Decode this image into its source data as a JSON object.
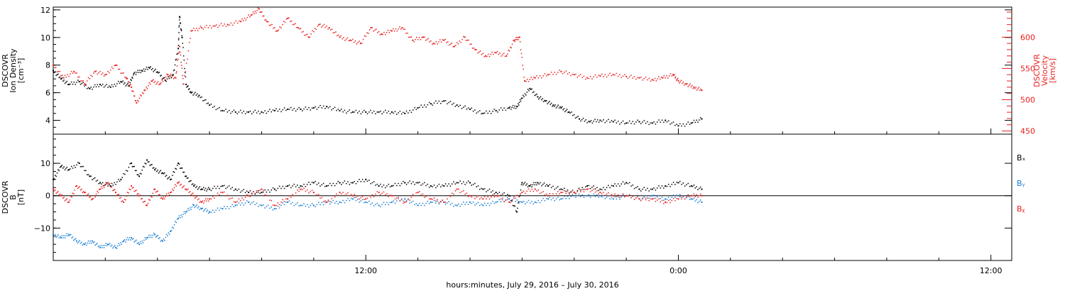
{
  "xaxis": {
    "label": "hours:minutes, July 29, 2016 – July 30, 2016",
    "tick_labels": [
      {
        "hours": 12,
        "label": "12:00"
      },
      {
        "hours": 24,
        "label": "0:00"
      },
      {
        "hours": 36,
        "label": "12:00"
      }
    ]
  },
  "colors": {
    "black": "#000000",
    "red": "#e8201f",
    "blue": "#1a7fd4"
  },
  "chart_data": [
    {
      "type": "scatter",
      "panel": "density-velocity",
      "xlim": [
        0,
        36.8
      ],
      "x_units": "hours since 2016-07-29 00:00",
      "left_axis": {
        "title_lines": [
          "DSCOVR",
          "Ion Density",
          "[cm⁻³]"
        ],
        "ylim": [
          3.0,
          12.2
        ],
        "ticks": [
          4,
          6,
          8,
          10,
          12
        ]
      },
      "right_axis": {
        "title_lines": [
          "DSCOVR",
          "Velocity",
          "[km/s]"
        ],
        "ylim": [
          445,
          648
        ],
        "ticks": [
          450,
          500,
          550,
          600
        ],
        "minor_step": 10
      },
      "series": [
        {
          "color": "black",
          "axis": "left",
          "x": [
            0,
            0.3,
            0.6,
            1.0,
            1.4,
            1.8,
            2.2,
            2.6,
            2.9,
            3.1,
            3.4,
            3.7,
            4.0,
            4.3,
            4.6,
            4.8,
            4.85,
            4.95,
            5.1,
            5.3,
            5.6,
            6.0,
            6.5,
            7.0,
            7.5,
            8.0,
            8.5,
            9.0,
            9.5,
            10.0,
            10.5,
            11.0,
            11.5,
            12.0,
            12.5,
            13.0,
            13.5,
            14.0,
            14.5,
            15.0,
            15.5,
            16.0,
            16.5,
            17.0,
            17.5,
            17.8,
            18.0,
            18.3,
            18.6,
            18.9,
            19.2,
            19.5,
            19.8,
            20.2,
            20.6,
            21.0,
            21.5,
            22.0,
            22.5,
            23.0,
            23.5,
            24.0,
            24.5,
            24.9
          ],
          "y": [
            7.6,
            7.0,
            6.6,
            6.8,
            6.3,
            6.6,
            6.4,
            6.8,
            6.5,
            7.4,
            7.6,
            7.8,
            7.5,
            6.9,
            7.3,
            9.2,
            11.5,
            10.0,
            6.6,
            6.0,
            5.8,
            5.1,
            4.7,
            4.6,
            4.6,
            4.6,
            4.7,
            4.8,
            4.8,
            4.9,
            5.0,
            4.7,
            4.6,
            4.6,
            4.6,
            4.6,
            4.5,
            4.9,
            5.2,
            5.4,
            5.1,
            4.8,
            4.5,
            4.7,
            4.9,
            5.0,
            5.6,
            6.3,
            5.7,
            5.4,
            5.1,
            4.9,
            4.6,
            4.1,
            3.9,
            4.0,
            3.9,
            3.8,
            3.9,
            3.8,
            4.0,
            3.6,
            3.8,
            4.1
          ]
        },
        {
          "color": "red",
          "axis": "right",
          "x": [
            0,
            0.4,
            0.8,
            1.2,
            1.6,
            2.0,
            2.4,
            2.8,
            3.0,
            3.2,
            3.5,
            3.8,
            4.1,
            4.4,
            4.7,
            4.85,
            5.0,
            5.3,
            5.7,
            6.2,
            6.7,
            7.2,
            7.6,
            7.9,
            8.2,
            8.6,
            9.0,
            9.4,
            9.8,
            10.2,
            10.6,
            11.0,
            11.4,
            11.8,
            12.2,
            12.6,
            13.0,
            13.4,
            13.8,
            14.2,
            14.6,
            15.0,
            15.4,
            15.8,
            16.2,
            16.6,
            17.0,
            17.4,
            17.7,
            17.9,
            18.1,
            18.5,
            19.0,
            19.5,
            20.0,
            20.5,
            21.0,
            21.5,
            22.0,
            22.5,
            23.0,
            23.4,
            23.8,
            24.0,
            24.3,
            24.6,
            24.9
          ],
          "y": [
            555,
            535,
            545,
            525,
            545,
            540,
            555,
            535,
            520,
            495,
            515,
            530,
            525,
            540,
            535,
            585,
            525,
            610,
            615,
            618,
            620,
            625,
            635,
            645,
            625,
            610,
            630,
            615,
            600,
            620,
            615,
            600,
            595,
            590,
            615,
            605,
            610,
            615,
            595,
            600,
            590,
            595,
            585,
            600,
            580,
            570,
            575,
            570,
            595,
            600,
            530,
            535,
            540,
            545,
            540,
            535,
            538,
            540,
            537,
            535,
            532,
            535,
            540,
            530,
            525,
            520,
            515
          ]
        }
      ]
    },
    {
      "type": "scatter",
      "panel": "magnetic-field",
      "xlim": [
        0,
        36.8
      ],
      "x_units": "hours since 2016-07-29 00:00",
      "left_axis": {
        "title_lines": [
          "DSCOVR",
          "B",
          "[nT]"
        ],
        "ylim": [
          -20,
          19
        ],
        "ticks": [
          -10,
          0,
          10
        ]
      },
      "series": [
        {
          "name": "Bₓ",
          "color": "black",
          "x": [
            0,
            0.3,
            0.6,
            1.0,
            1.4,
            1.8,
            2.2,
            2.6,
            3.0,
            3.3,
            3.6,
            3.9,
            4.2,
            4.5,
            4.8,
            5.1,
            5.4,
            5.7,
            6.0,
            6.5,
            7.0,
            7.5,
            8.0,
            8.5,
            9.0,
            9.5,
            10.0,
            10.5,
            11.0,
            11.5,
            12.0,
            12.5,
            13.0,
            13.5,
            14.0,
            14.5,
            15.0,
            15.5,
            16.0,
            16.5,
            17.0,
            17.5,
            17.8,
            18.0,
            18.3,
            18.6,
            19.0,
            19.5,
            20.0,
            20.5,
            21.0,
            21.5,
            22.0,
            22.5,
            23.0,
            23.5,
            24.0,
            24.5,
            24.9
          ],
          "y": [
            5,
            9,
            8,
            10,
            6,
            4,
            3,
            5,
            10,
            6,
            11,
            8,
            7,
            5,
            10,
            6,
            3,
            2,
            2,
            3,
            2,
            1,
            1,
            2,
            3,
            3,
            4,
            3,
            4,
            4,
            5,
            3,
            3,
            4,
            4,
            3,
            3,
            4,
            4,
            2,
            1,
            0,
            -5,
            4,
            3,
            4,
            3,
            2,
            1,
            3,
            2,
            3,
            4,
            2,
            2,
            3,
            4,
            3,
            2
          ]
        },
        {
          "name": "Bᵧ",
          "color": "blue",
          "x": [
            0,
            0.3,
            0.6,
            0.9,
            1.2,
            1.5,
            1.8,
            2.1,
            2.4,
            2.7,
            3.0,
            3.3,
            3.6,
            3.9,
            4.2,
            4.5,
            4.8,
            5.1,
            5.4,
            5.7,
            6.0,
            6.5,
            7.0,
            7.5,
            8.0,
            8.5,
            9.0,
            9.5,
            10.0,
            10.5,
            11.0,
            11.5,
            12.0,
            12.5,
            13.0,
            13.5,
            14.0,
            14.5,
            15.0,
            15.5,
            16.0,
            16.5,
            17.0,
            17.5,
            18.0,
            18.5,
            19.0,
            19.5,
            20.0,
            20.5,
            21.0,
            21.5,
            22.0,
            22.5,
            23.0,
            23.5,
            24.0,
            24.5,
            24.9
          ],
          "y": [
            -12,
            -13,
            -12,
            -14,
            -15,
            -14,
            -16,
            -15,
            -16,
            -14,
            -13,
            -15,
            -13,
            -12,
            -14,
            -11,
            -7,
            -5,
            -3,
            -4,
            -5,
            -4,
            -3,
            -2,
            -3,
            -4,
            -2,
            -3,
            -3,
            -2,
            -2,
            -1,
            -2,
            -3,
            -2,
            -1,
            -3,
            -2,
            -2,
            -3,
            -2,
            -3,
            -2,
            -1,
            -2,
            -2,
            -1,
            -1,
            0,
            0,
            0,
            -1,
            0,
            -1,
            0,
            -1,
            0,
            -1,
            -2
          ]
        },
        {
          "name": "Bᵪ",
          "color": "red",
          "x": [
            0,
            0.3,
            0.6,
            0.9,
            1.2,
            1.5,
            1.8,
            2.1,
            2.4,
            2.7,
            3.0,
            3.3,
            3.6,
            3.9,
            4.2,
            4.5,
            4.8,
            5.1,
            5.4,
            5.7,
            6.0,
            6.5,
            7.0,
            7.5,
            8.0,
            8.5,
            9.0,
            9.5,
            10.0,
            10.5,
            11.0,
            11.5,
            12.0,
            12.5,
            13.0,
            13.5,
            14.0,
            14.5,
            15.0,
            15.5,
            16.0,
            16.5,
            17.0,
            17.5,
            18.0,
            18.5,
            19.0,
            19.5,
            20.0,
            20.5,
            21.0,
            21.5,
            22.0,
            22.5,
            23.0,
            23.5,
            24.0,
            24.5,
            24.9
          ],
          "y": [
            2,
            0,
            -2,
            3,
            1,
            -1,
            2,
            4,
            1,
            -2,
            3,
            0,
            -3,
            2,
            -1,
            1,
            4,
            2,
            0,
            -2,
            -1,
            1,
            -2,
            0,
            2,
            -3,
            -1,
            2,
            1,
            -2,
            1,
            0,
            -1,
            1,
            0,
            -2,
            1,
            -1,
            -2,
            2,
            0,
            -1,
            0,
            -2,
            1,
            2,
            0,
            1,
            1,
            2,
            1,
            0,
            0,
            -1,
            -1,
            -2,
            -1,
            0,
            0
          ]
        }
      ]
    }
  ]
}
